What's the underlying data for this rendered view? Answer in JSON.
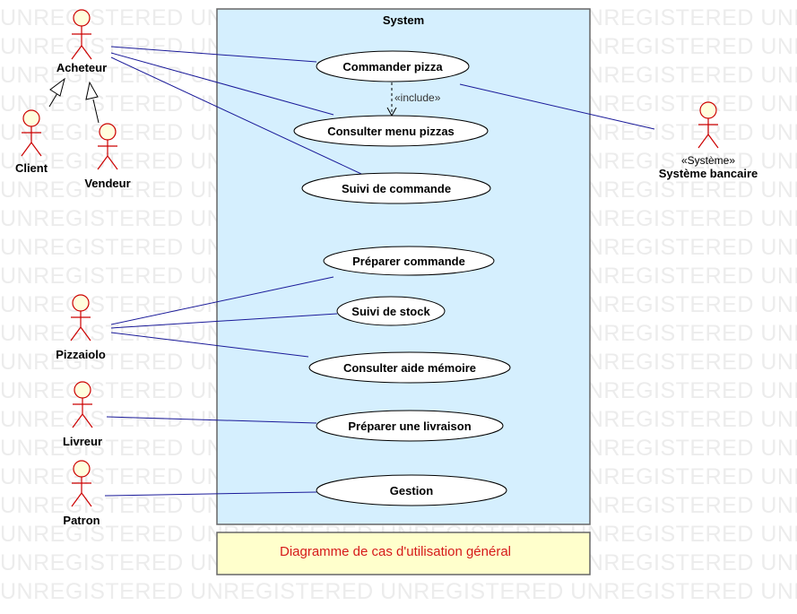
{
  "watermark": "UNREGISTERED",
  "system": {
    "title": "System"
  },
  "actors": [
    {
      "id": "acheteur",
      "label": "Acheteur"
    },
    {
      "id": "client",
      "label": "Client"
    },
    {
      "id": "vendeur",
      "label": "Vendeur"
    },
    {
      "id": "pizzaiolo",
      "label": "Pizzaiolo"
    },
    {
      "id": "livreur",
      "label": "Livreur"
    },
    {
      "id": "patron",
      "label": "Patron"
    },
    {
      "id": "banque",
      "label": "Système bancaire",
      "stereotype": "«Système»"
    }
  ],
  "use_cases": [
    {
      "id": "commander",
      "label": "Commander pizza"
    },
    {
      "id": "consulter",
      "label": "Consulter menu pizzas"
    },
    {
      "id": "suivi_cmd",
      "label": "Suivi de commande"
    },
    {
      "id": "preparer_cmd",
      "label": "Préparer commande"
    },
    {
      "id": "suivi_stock",
      "label": "Suivi de stock"
    },
    {
      "id": "aide",
      "label": "Consulter aide mémoire"
    },
    {
      "id": "livraison",
      "label": "Préparer une livraison"
    },
    {
      "id": "gestion",
      "label": "Gestion"
    }
  ],
  "relations": {
    "include_label": "«include»",
    "associations": [
      [
        "acheteur",
        "commander"
      ],
      [
        "acheteur",
        "consulter"
      ],
      [
        "acheteur",
        "suivi_cmd"
      ],
      [
        "banque",
        "commander"
      ],
      [
        "pizzaiolo",
        "preparer_cmd"
      ],
      [
        "pizzaiolo",
        "suivi_stock"
      ],
      [
        "pizzaiolo",
        "aide"
      ],
      [
        "livreur",
        "livraison"
      ],
      [
        "patron",
        "gestion"
      ]
    ],
    "generalizations": [
      [
        "client",
        "acheteur"
      ],
      [
        "vendeur",
        "acheteur"
      ]
    ],
    "includes": [
      [
        "commander",
        "consulter"
      ]
    ]
  },
  "note": {
    "text": "Diagramme de cas d'utilisation général"
  },
  "colors": {
    "system_fill": "#d5effe",
    "system_border": "#666666",
    "actor_stroke": "#cc0000",
    "actor_fill": "#fffedd",
    "association": "#1a1a99",
    "note_fill": "#ffffcc",
    "note_text": "#d61a1a"
  }
}
